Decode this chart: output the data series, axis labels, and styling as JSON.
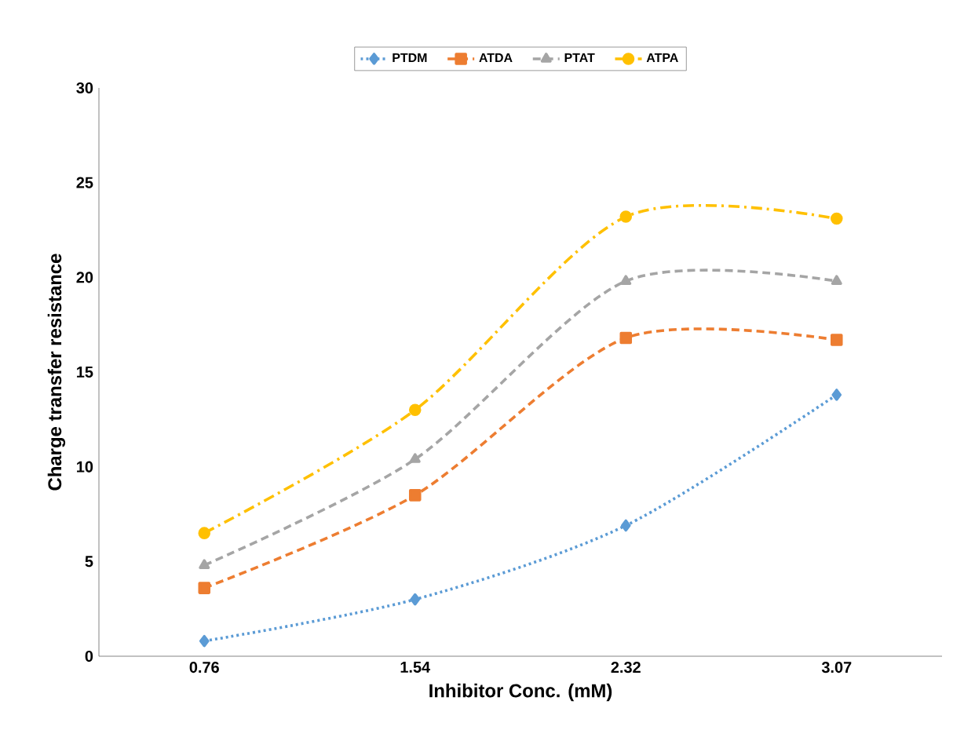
{
  "chart_data": {
    "type": "line",
    "xlabel": "Inhibitor Conc. (mM)",
    "ylabel": "Charge transfer resistance",
    "categories": [
      "0.76",
      "1.54",
      "2.32",
      "3.07"
    ],
    "series": [
      {
        "name": "PTDM",
        "color": "#5b9bd5",
        "values": [
          0.8,
          3.0,
          6.9,
          13.8
        ],
        "marker": "diamond",
        "line_style": "dotted"
      },
      {
        "name": "ATDA",
        "color": "#ed7d31",
        "values": [
          3.6,
          8.5,
          16.8,
          16.7
        ],
        "marker": "square",
        "line_style": "dashed"
      },
      {
        "name": "PTAT",
        "color": "#a5a5a5",
        "values": [
          4.8,
          10.4,
          19.8,
          19.8
        ],
        "marker": "triangle",
        "line_style": "dashed"
      },
      {
        "name": "ATPA",
        "color": "#ffc000",
        "values": [
          6.5,
          13.0,
          23.2,
          23.1
        ],
        "marker": "circle",
        "line_style": "dashdot"
      }
    ],
    "ylim": [
      0,
      30
    ],
    "yticks": [
      0,
      5,
      10,
      15,
      20,
      25,
      30
    ],
    "grid": false,
    "legend": "top"
  }
}
